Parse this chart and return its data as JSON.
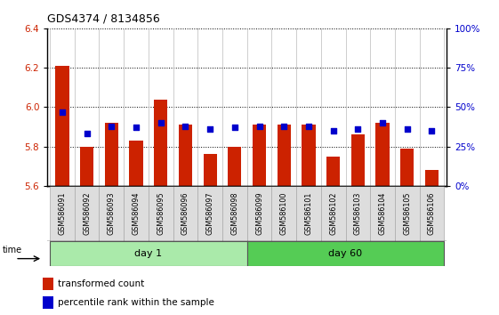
{
  "title": "GDS4374 / 8134856",
  "samples": [
    "GSM586091",
    "GSM586092",
    "GSM586093",
    "GSM586094",
    "GSM586095",
    "GSM586096",
    "GSM586097",
    "GSM586098",
    "GSM586099",
    "GSM586100",
    "GSM586101",
    "GSM586102",
    "GSM586103",
    "GSM586104",
    "GSM586105",
    "GSM586106"
  ],
  "red_values": [
    6.21,
    5.8,
    5.92,
    5.83,
    6.04,
    5.91,
    5.76,
    5.8,
    5.91,
    5.91,
    5.91,
    5.75,
    5.86,
    5.92,
    5.79,
    5.68
  ],
  "blue_values": [
    47,
    33,
    38,
    37,
    40,
    38,
    36,
    37,
    38,
    38,
    38,
    35,
    36,
    40,
    36,
    35
  ],
  "ymin": 5.6,
  "ymax": 6.4,
  "yticks_left": [
    5.6,
    5.8,
    6.0,
    6.2,
    6.4
  ],
  "yticks_right": [
    0,
    25,
    50,
    75,
    100
  ],
  "bar_color": "#cc2200",
  "dot_color": "#0000cc",
  "day1_color": "#aaeaaa",
  "day60_color": "#55cc55",
  "day1_samples": 8,
  "day60_samples": 8,
  "grid_color": "#000000",
  "ylabel_right_color": "#0000cc",
  "ylabel_left_color": "#cc2200"
}
